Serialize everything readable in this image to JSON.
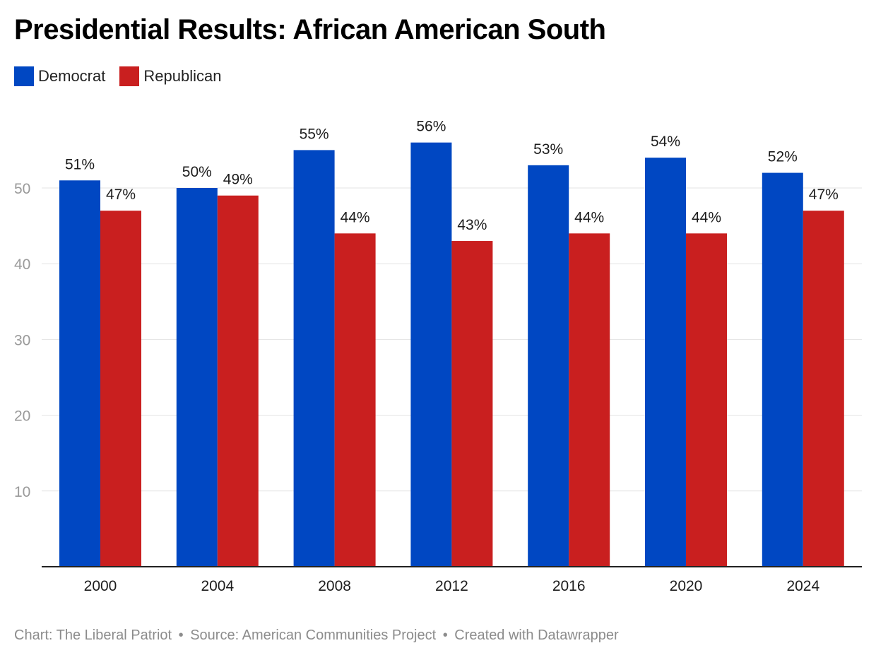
{
  "title": "Presidential Results: African American South",
  "legend": [
    {
      "name": "Democrat",
      "color": "#0047c2"
    },
    {
      "name": "Republican",
      "color": "#c91f1f"
    }
  ],
  "chart_data": {
    "type": "bar",
    "title": "Presidential Results: African American South",
    "xlabel": "",
    "ylabel": "",
    "categories": [
      "2000",
      "2004",
      "2008",
      "2012",
      "2016",
      "2020",
      "2024"
    ],
    "series": [
      {
        "name": "Democrat",
        "color": "#0047c2",
        "values": [
          51,
          50,
          55,
          56,
          53,
          54,
          52
        ],
        "labels": [
          "51%",
          "50%",
          "55%",
          "56%",
          "53%",
          "54%",
          "52%"
        ]
      },
      {
        "name": "Republican",
        "color": "#c91f1f",
        "values": [
          47,
          49,
          44,
          43,
          44,
          44,
          47
        ],
        "labels": [
          "47%",
          "49%",
          "44%",
          "43%",
          "44%",
          "44%",
          "47%"
        ]
      }
    ],
    "ylim": [
      0,
      56
    ],
    "yticks": [
      10,
      20,
      30,
      40,
      50
    ],
    "grid": true,
    "legend_position": "top-left"
  },
  "footer": {
    "chart_credit": "Chart: The Liberal Patriot",
    "separator": "•",
    "source": "Source: American Communities Project",
    "created_with": "Created with Datawrapper"
  }
}
